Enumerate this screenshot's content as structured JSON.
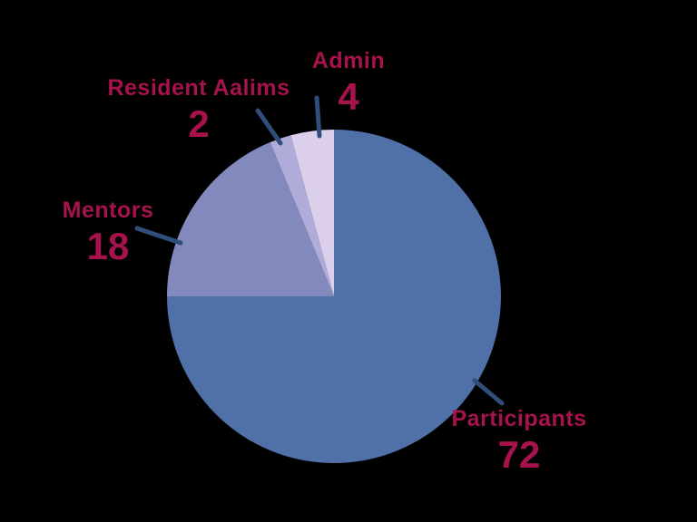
{
  "chart_data": {
    "type": "pie",
    "title": "",
    "series": [
      {
        "label": "Participants",
        "value": 72,
        "color": "#5070a8"
      },
      {
        "label": "Mentors",
        "value": 18,
        "color": "#8289bd"
      },
      {
        "label": "Resident Aalims",
        "value": 2,
        "color": "#afacd9"
      },
      {
        "label": "Admin",
        "value": 4,
        "color": "#dccfec"
      }
    ],
    "total": 96,
    "start_angle_deg": 0,
    "direction": "clockwise",
    "legend_position": "none",
    "labels_style": "external-callouts-with-leader-lines",
    "label_color": "#a6124c",
    "leader_line_color": "#2f4e79",
    "background_color": "#000000"
  }
}
